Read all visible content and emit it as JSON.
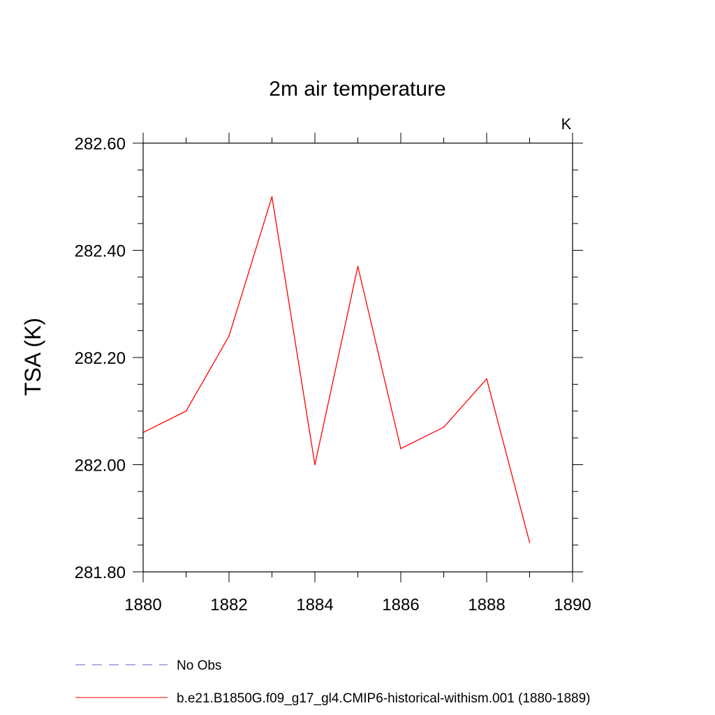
{
  "chart_data": {
    "type": "line",
    "title": "2m air temperature",
    "xlabel": "",
    "ylabel": "TSA  (K)",
    "unit_label": "K",
    "xlim": [
      1880,
      1890
    ],
    "ylim": [
      281.8,
      282.6
    ],
    "x_ticks": [
      1880,
      1882,
      1884,
      1886,
      1888,
      1890
    ],
    "x_tick_labels": [
      "1880",
      "1882",
      "1884",
      "1886",
      "1888",
      "1890"
    ],
    "x_minor_step": 1,
    "y_ticks": [
      281.8,
      282.0,
      282.2,
      282.4,
      282.6
    ],
    "y_tick_labels": [
      "281.80",
      "282.00",
      "282.20",
      "282.40",
      "282.60"
    ],
    "y_minor_step": 0.05,
    "grid": false,
    "legend_position": "bottom",
    "series": [
      {
        "name": "No Obs",
        "color": "#6a5acd",
        "dash": "dashed",
        "x": [],
        "y": []
      },
      {
        "name": "b.e21.B1850G.f09_g17_gl4.CMIP6-historical-withism.001 (1880-1889)",
        "color": "#ff0000",
        "dash": "solid",
        "x": [
          1880,
          1881,
          1882,
          1883,
          1884,
          1885,
          1886,
          1887,
          1888,
          1889
        ],
        "y": [
          282.06,
          282.1,
          282.24,
          282.5,
          282.0,
          282.37,
          282.03,
          282.07,
          282.16,
          281.855
        ]
      }
    ]
  }
}
